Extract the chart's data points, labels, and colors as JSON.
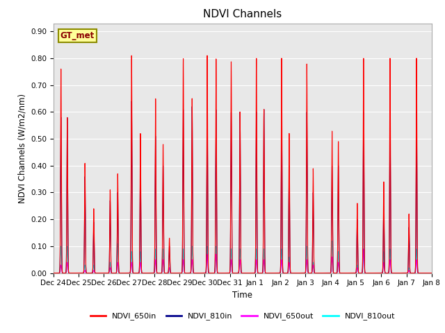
{
  "title": "NDVI Channels",
  "ylabel": "NDVI Channels (W/m2/nm)",
  "xlabel": "Time",
  "ylim": [
    0.0,
    0.93
  ],
  "yticks": [
    0.0,
    0.1,
    0.2,
    0.3,
    0.4,
    0.5,
    0.6,
    0.7,
    0.8,
    0.9
  ],
  "xtick_labels": [
    "Dec 24",
    "Dec 25",
    "Dec 26",
    "Dec 27",
    "Dec 28",
    "Dec 29",
    "Dec 30",
    "Dec 31",
    "Jan 1",
    "Jan 2",
    "Jan 3",
    "Jan 4",
    "Jan 5",
    "Jan 6",
    "Jan 7",
    "Jan 8"
  ],
  "color_650in": "#FF0000",
  "color_810in": "#00008B",
  "color_650out": "#FF00FF",
  "color_810out": "#00FFFF",
  "legend_labels": [
    "NDVI_650in",
    "NDVI_810in",
    "NDVI_650out",
    "NDVI_810out"
  ],
  "gt_met_label": "GT_met",
  "bg_color": "#E8E8E8",
  "spike_positions": [
    0.3,
    0.55,
    1.25,
    1.6,
    2.25,
    2.55,
    3.1,
    3.45,
    4.05,
    4.35,
    4.6,
    5.15,
    5.5,
    6.1,
    6.45,
    7.05,
    7.4,
    8.05,
    8.35,
    9.05,
    9.35,
    10.05,
    10.3,
    11.05,
    11.3,
    12.05,
    12.3,
    13.1,
    13.35,
    14.1,
    14.4
  ],
  "peaks_650in": [
    0.76,
    0.58,
    0.41,
    0.24,
    0.31,
    0.37,
    0.81,
    0.52,
    0.65,
    0.48,
    0.13,
    0.8,
    0.65,
    0.81,
    0.8,
    0.79,
    0.6,
    0.8,
    0.61,
    0.8,
    0.52,
    0.78,
    0.39,
    0.53,
    0.49,
    0.26,
    0.8,
    0.34,
    0.8,
    0.22,
    0.8
  ],
  "peaks_810in": [
    0.58,
    0.58,
    0.36,
    0.19,
    0.27,
    0.3,
    0.64,
    0.42,
    0.51,
    0.4,
    0.1,
    0.61,
    0.62,
    0.6,
    0.61,
    0.6,
    0.6,
    0.6,
    0.61,
    0.6,
    0.4,
    0.6,
    0.3,
    0.4,
    0.4,
    0.2,
    0.6,
    0.25,
    0.6,
    0.17,
    0.6
  ],
  "peaks_650out": [
    0.03,
    0.04,
    0.01,
    0.01,
    0.02,
    0.04,
    0.04,
    0.04,
    0.05,
    0.05,
    0.02,
    0.05,
    0.05,
    0.07,
    0.07,
    0.05,
    0.05,
    0.05,
    0.05,
    0.05,
    0.04,
    0.05,
    0.03,
    0.06,
    0.04,
    0.02,
    0.09,
    0.04,
    0.05,
    0.01,
    0.05
  ],
  "peaks_810out": [
    0.1,
    0.1,
    0.03,
    0.03,
    0.04,
    0.11,
    0.08,
    0.08,
    0.09,
    0.09,
    0.02,
    0.09,
    0.1,
    0.1,
    0.1,
    0.09,
    0.09,
    0.09,
    0.09,
    0.09,
    0.06,
    0.1,
    0.04,
    0.12,
    0.08,
    0.03,
    0.09,
    0.08,
    0.09,
    0.02,
    0.09
  ]
}
